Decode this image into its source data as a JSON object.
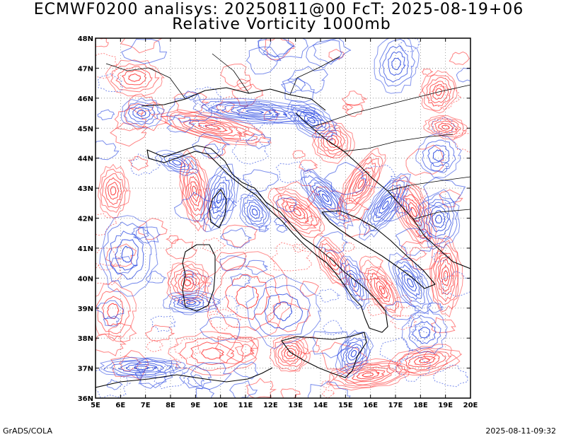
{
  "header": {
    "title_line1": "ECMWF0200 analisys: 20250811@00 FcT: 2025-08-19+06",
    "title_line2": "Relative Vorticity 1000mb"
  },
  "map": {
    "lon_labels": [
      "5E",
      "6E",
      "7E",
      "8E",
      "9E",
      "10E",
      "11E",
      "12E",
      "13E",
      "14E",
      "15E",
      "16E",
      "17E",
      "18E",
      "19E",
      "20E"
    ],
    "lat_labels": [
      "48N",
      "47N",
      "46N",
      "45N",
      "44N",
      "43N",
      "42N",
      "41N",
      "40N",
      "39N",
      "38N",
      "37N",
      "36N"
    ],
    "colors": {
      "positive": "#ff3030",
      "negative": "#2040e0",
      "coast": "#000000",
      "frame": "#000000"
    }
  },
  "footer": {
    "left": "GrADS/COLA",
    "right": "2025-08-11-09:32"
  }
}
